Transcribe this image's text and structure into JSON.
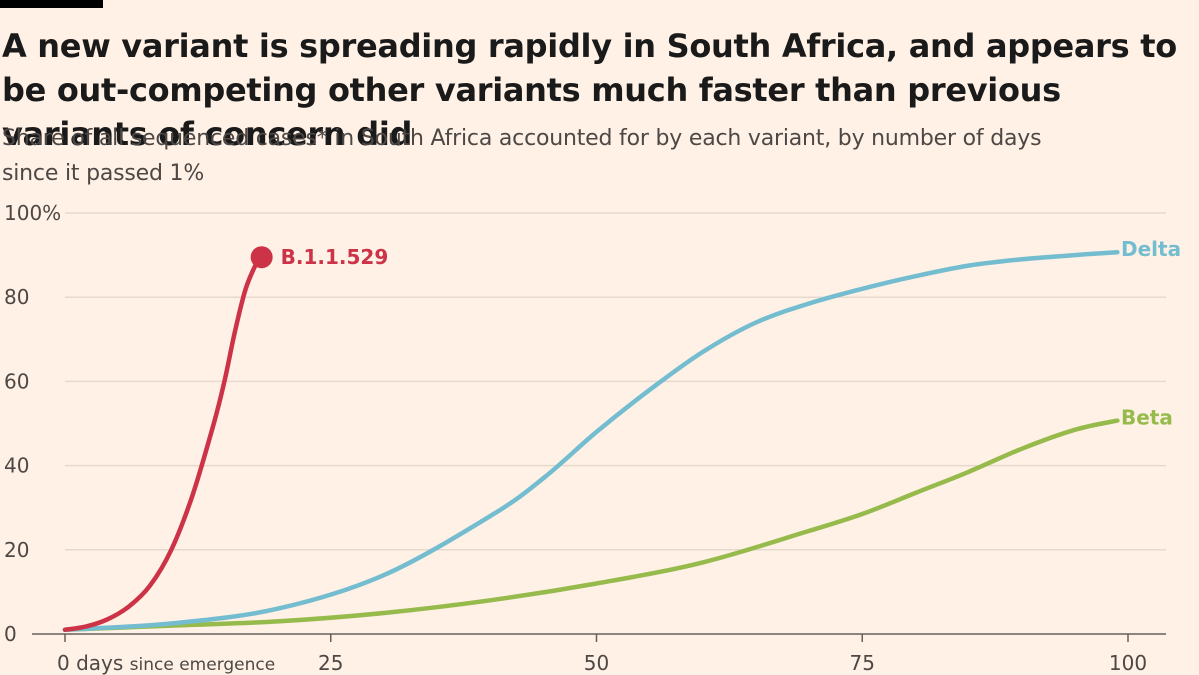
{
  "title": "A new variant is spreading rapidly in South Africa, and appears to be out-competing other variants much faster than previous variants of concern did",
  "subtitle": "Share of all sequenced cases* in South Africa accounted for by each variant, by number of days since it passed 1%",
  "chart_data": {
    "type": "line",
    "xlim": [
      0,
      100
    ],
    "ylim": [
      0,
      100
    ],
    "x_ticks": [
      {
        "value": 0,
        "label": "0 days",
        "suffix": "since emergence"
      },
      {
        "value": 25,
        "label": "25"
      },
      {
        "value": 50,
        "label": "50"
      },
      {
        "value": 75,
        "label": "75"
      },
      {
        "value": 100,
        "label": "100"
      }
    ],
    "y_ticks": [
      {
        "value": 0,
        "label": "0"
      },
      {
        "value": 20,
        "label": "20"
      },
      {
        "value": 40,
        "label": "40"
      },
      {
        "value": 60,
        "label": "60"
      },
      {
        "value": 80,
        "label": "80"
      },
      {
        "value": 100,
        "label": "100%"
      }
    ],
    "grid": true,
    "series": [
      {
        "name": "B.1.1.529",
        "color": "#cc3347",
        "end_marker": true,
        "points": [
          [
            0,
            1
          ],
          [
            2,
            1.8
          ],
          [
            4,
            3.5
          ],
          [
            6,
            6.5
          ],
          [
            8,
            11.5
          ],
          [
            10,
            20
          ],
          [
            12,
            33
          ],
          [
            14,
            50
          ],
          [
            15,
            60
          ],
          [
            16,
            72
          ],
          [
            17,
            82
          ],
          [
            18,
            88
          ],
          [
            18.5,
            89.5
          ]
        ]
      },
      {
        "name": "Delta",
        "color": "#74bdd0",
        "end_marker": false,
        "points": [
          [
            0,
            1
          ],
          [
            10,
            2.5
          ],
          [
            20,
            6
          ],
          [
            30,
            14
          ],
          [
            40,
            28
          ],
          [
            45,
            37
          ],
          [
            50,
            48
          ],
          [
            55,
            58
          ],
          [
            60,
            67
          ],
          [
            65,
            74
          ],
          [
            70,
            78.5
          ],
          [
            75,
            82
          ],
          [
            80,
            85
          ],
          [
            85,
            87.5
          ],
          [
            90,
            89
          ],
          [
            95,
            90
          ],
          [
            99,
            90.7
          ]
        ]
      },
      {
        "name": "Beta",
        "color": "#96bb4c",
        "end_marker": false,
        "points": [
          [
            0,
            1
          ],
          [
            10,
            2
          ],
          [
            20,
            3
          ],
          [
            30,
            5
          ],
          [
            40,
            8
          ],
          [
            50,
            12
          ],
          [
            60,
            17
          ],
          [
            70,
            24.5
          ],
          [
            75,
            28.5
          ],
          [
            80,
            33.5
          ],
          [
            85,
            38.5
          ],
          [
            90,
            44
          ],
          [
            95,
            48.5
          ],
          [
            99,
            50.7
          ]
        ]
      }
    ]
  }
}
